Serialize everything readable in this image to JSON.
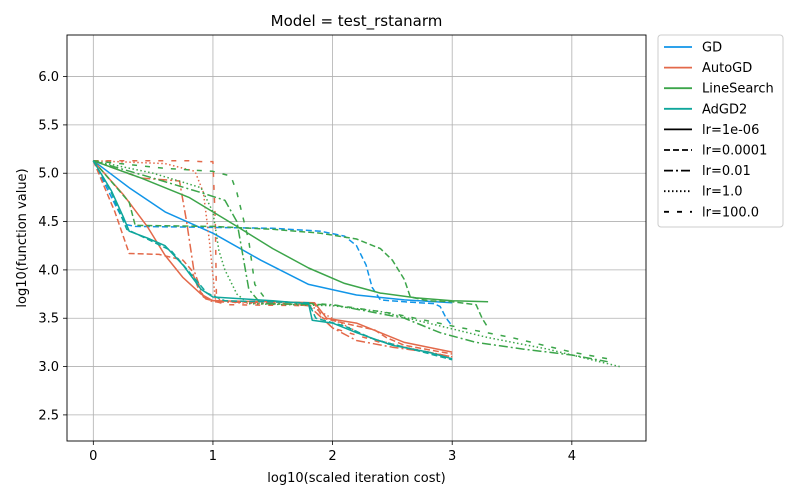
{
  "chart_data": {
    "type": "line",
    "title": "Model = test_rstanarm",
    "xlabel": "log10(scaled iteration cost)",
    "ylabel": "log10(function value)",
    "xlim": [
      -0.22,
      4.62
    ],
    "ylim": [
      2.23,
      6.43
    ],
    "xticks": [
      0,
      1,
      2,
      3,
      4
    ],
    "xtick_labels": [
      "0",
      "1",
      "2",
      "3",
      "4"
    ],
    "yticks": [
      2.5,
      3.0,
      3.5,
      4.0,
      4.5,
      5.0,
      5.5,
      6.0
    ],
    "ytick_labels": [
      "2.5",
      "3.0",
      "3.5",
      "4.0",
      "4.5",
      "5.0",
      "5.5",
      "6.0"
    ],
    "grid": true,
    "legend_position": "outside-right",
    "legend": [
      {
        "label": "GD",
        "kind": "color",
        "color": "#1195e8"
      },
      {
        "label": "AutoGD",
        "kind": "color",
        "color": "#e3694a"
      },
      {
        "label": "LineSearch",
        "kind": "color",
        "color": "#3ca54a"
      },
      {
        "label": "AdGD2",
        "kind": "color",
        "color": "#0fa69c"
      },
      {
        "label": "lr=1e-06",
        "kind": "style",
        "dash": "solid"
      },
      {
        "label": "lr=0.0001",
        "kind": "style",
        "dash": "dashed"
      },
      {
        "label": "lr=0.01",
        "kind": "style",
        "dash": "dashdot"
      },
      {
        "label": "lr=1.0",
        "kind": "style",
        "dash": "dotted"
      },
      {
        "label": "lr=100.0",
        "kind": "style",
        "dash": "loosedash"
      }
    ],
    "series": [
      {
        "name": "GD lr=1e-06",
        "method": "GD",
        "color": "#1195e8",
        "dash": "solid",
        "points": [
          [
            0,
            5.13
          ],
          [
            0.3,
            4.85
          ],
          [
            0.6,
            4.6
          ],
          [
            1.0,
            4.38
          ],
          [
            1.4,
            4.1
          ],
          [
            1.8,
            3.85
          ],
          [
            2.2,
            3.74
          ],
          [
            2.6,
            3.69
          ],
          [
            3.0,
            3.66
          ]
        ]
      },
      {
        "name": "GD lr=0.0001",
        "method": "GD",
        "color": "#1195e8",
        "dash": "dashed",
        "points": [
          [
            0,
            5.13
          ],
          [
            0.18,
            4.68
          ],
          [
            0.27,
            4.47
          ],
          [
            0.35,
            4.45
          ],
          [
            1.0,
            4.44
          ],
          [
            1.5,
            4.43
          ],
          [
            1.9,
            4.4
          ],
          [
            2.1,
            4.35
          ],
          [
            2.2,
            4.25
          ],
          [
            2.28,
            4.05
          ],
          [
            2.33,
            3.82
          ],
          [
            2.4,
            3.69
          ],
          [
            2.6,
            3.67
          ],
          [
            2.85,
            3.65
          ],
          [
            2.9,
            3.62
          ],
          [
            2.95,
            3.5
          ],
          [
            3.0,
            3.42
          ]
        ]
      },
      {
        "name": "AutoGD lr=1e-06",
        "method": "AutoGD",
        "color": "#e3694a",
        "dash": "solid",
        "points": [
          [
            0,
            5.13
          ],
          [
            0.25,
            4.78
          ],
          [
            0.45,
            4.45
          ],
          [
            0.6,
            4.15
          ],
          [
            0.75,
            3.92
          ],
          [
            0.9,
            3.75
          ],
          [
            1.0,
            3.68
          ],
          [
            1.5,
            3.67
          ],
          [
            1.85,
            3.66
          ],
          [
            1.95,
            3.5
          ],
          [
            2.2,
            3.45
          ],
          [
            2.4,
            3.35
          ],
          [
            2.6,
            3.25
          ],
          [
            3.0,
            3.15
          ]
        ]
      },
      {
        "name": "AutoGD lr=0.0001",
        "method": "AutoGD",
        "color": "#e3694a",
        "dash": "dashed",
        "points": [
          [
            0,
            5.13
          ],
          [
            0.18,
            4.6
          ],
          [
            0.3,
            4.17
          ],
          [
            0.55,
            4.16
          ],
          [
            0.75,
            4.1
          ],
          [
            0.82,
            4.0
          ],
          [
            0.88,
            3.8
          ],
          [
            0.94,
            3.7
          ],
          [
            1.0,
            3.68
          ],
          [
            1.5,
            3.67
          ],
          [
            1.85,
            3.65
          ],
          [
            1.92,
            3.5
          ],
          [
            2.2,
            3.42
          ],
          [
            2.35,
            3.38
          ],
          [
            2.45,
            3.3
          ],
          [
            2.6,
            3.22
          ],
          [
            3.0,
            3.13
          ]
        ]
      },
      {
        "name": "AutoGD lr=0.01",
        "method": "AutoGD",
        "color": "#e3694a",
        "dash": "dashdot",
        "points": [
          [
            0,
            5.13
          ],
          [
            0.4,
            4.95
          ],
          [
            0.62,
            4.93
          ],
          [
            0.72,
            4.92
          ],
          [
            0.78,
            4.5
          ],
          [
            0.84,
            4.0
          ],
          [
            0.92,
            3.72
          ],
          [
            1.0,
            3.67
          ],
          [
            1.5,
            3.66
          ],
          [
            1.8,
            3.63
          ],
          [
            2.0,
            3.4
          ],
          [
            2.2,
            3.27
          ],
          [
            2.5,
            3.2
          ],
          [
            2.8,
            3.15
          ],
          [
            3.0,
            3.1
          ]
        ]
      },
      {
        "name": "AutoGD lr=1.0",
        "method": "AutoGD",
        "color": "#e3694a",
        "dash": "dotted",
        "points": [
          [
            0,
            5.13
          ],
          [
            0.6,
            5.1
          ],
          [
            0.85,
            5.02
          ],
          [
            0.92,
            4.8
          ],
          [
            0.97,
            4.3
          ],
          [
            1.02,
            3.7
          ],
          [
            1.2,
            3.66
          ],
          [
            1.8,
            3.64
          ],
          [
            2.05,
            3.46
          ],
          [
            2.3,
            3.3
          ],
          [
            2.6,
            3.2
          ],
          [
            3.0,
            3.1
          ]
        ]
      },
      {
        "name": "AutoGD lr=100.0",
        "method": "AutoGD",
        "color": "#e3694a",
        "dash": "loosedash",
        "points": [
          [
            0,
            5.13
          ],
          [
            0.8,
            5.13
          ],
          [
            0.9,
            5.12
          ],
          [
            1.0,
            5.12
          ],
          [
            1.02,
            4.5
          ],
          [
            1.03,
            3.67
          ],
          [
            1.12,
            3.64
          ],
          [
            1.8,
            3.63
          ],
          [
            2.0,
            3.4
          ],
          [
            2.4,
            3.25
          ],
          [
            3.0,
            3.1
          ]
        ]
      },
      {
        "name": "LineSearch lr=1e-06",
        "method": "LineSearch",
        "color": "#3ca54a",
        "dash": "solid",
        "points": [
          [
            0,
            5.13
          ],
          [
            0.4,
            4.95
          ],
          [
            0.8,
            4.75
          ],
          [
            1.2,
            4.45
          ],
          [
            1.5,
            4.22
          ],
          [
            1.8,
            4.02
          ],
          [
            2.1,
            3.86
          ],
          [
            2.4,
            3.76
          ],
          [
            2.7,
            3.71
          ],
          [
            3.0,
            3.68
          ],
          [
            3.3,
            3.67
          ]
        ]
      },
      {
        "name": "LineSearch lr=0.0001",
        "method": "LineSearch",
        "color": "#3ca54a",
        "dash": "dashed",
        "points": [
          [
            0,
            5.13
          ],
          [
            0.3,
            4.7
          ],
          [
            0.35,
            4.46
          ],
          [
            1.0,
            4.45
          ],
          [
            1.5,
            4.42
          ],
          [
            1.9,
            4.38
          ],
          [
            2.2,
            4.32
          ],
          [
            2.4,
            4.22
          ],
          [
            2.5,
            4.1
          ],
          [
            2.6,
            3.9
          ],
          [
            2.65,
            3.72
          ],
          [
            2.8,
            3.68
          ],
          [
            3.0,
            3.67
          ],
          [
            3.2,
            3.64
          ],
          [
            3.25,
            3.5
          ],
          [
            3.3,
            3.4
          ]
        ]
      },
      {
        "name": "LineSearch lr=0.01",
        "method": "LineSearch",
        "color": "#3ca54a",
        "dash": "dashdot",
        "points": [
          [
            0,
            5.13
          ],
          [
            0.5,
            4.95
          ],
          [
            0.9,
            4.8
          ],
          [
            1.1,
            4.72
          ],
          [
            1.2,
            4.5
          ],
          [
            1.3,
            3.8
          ],
          [
            1.4,
            3.65
          ],
          [
            2.0,
            3.64
          ],
          [
            2.6,
            3.5
          ],
          [
            2.9,
            3.35
          ],
          [
            3.2,
            3.25
          ],
          [
            3.6,
            3.18
          ],
          [
            4.0,
            3.12
          ],
          [
            4.3,
            3.05
          ]
        ]
      },
      {
        "name": "LineSearch lr=1.0",
        "method": "LineSearch",
        "color": "#3ca54a",
        "dash": "dotted",
        "points": [
          [
            0,
            5.13
          ],
          [
            0.5,
            5.0
          ],
          [
            0.9,
            4.85
          ],
          [
            1.0,
            4.6
          ],
          [
            1.05,
            4.2
          ],
          [
            1.1,
            4.0
          ],
          [
            1.2,
            3.75
          ],
          [
            1.3,
            3.65
          ],
          [
            2.0,
            3.63
          ],
          [
            2.4,
            3.57
          ],
          [
            2.8,
            3.45
          ],
          [
            3.3,
            3.3
          ],
          [
            3.8,
            3.18
          ],
          [
            4.4,
            3.0
          ]
        ]
      },
      {
        "name": "LineSearch lr=100.0",
        "method": "LineSearch",
        "color": "#3ca54a",
        "dash": "loosedash",
        "points": [
          [
            0,
            5.13
          ],
          [
            0.6,
            5.05
          ],
          [
            1.0,
            5.02
          ],
          [
            1.15,
            4.97
          ],
          [
            1.2,
            4.8
          ],
          [
            1.3,
            4.3
          ],
          [
            1.35,
            3.85
          ],
          [
            1.45,
            3.68
          ],
          [
            2.0,
            3.64
          ],
          [
            2.5,
            3.55
          ],
          [
            3.0,
            3.42
          ],
          [
            3.5,
            3.3
          ],
          [
            4.0,
            3.15
          ],
          [
            4.3,
            3.08
          ]
        ]
      },
      {
        "name": "AdGD2 lr=1e-06",
        "method": "AdGD2",
        "color": "#0fa69c",
        "dash": "solid",
        "points": [
          [
            0,
            5.13
          ],
          [
            0.15,
            4.82
          ],
          [
            0.25,
            4.55
          ],
          [
            0.3,
            4.4
          ],
          [
            0.45,
            4.33
          ],
          [
            0.6,
            4.25
          ],
          [
            0.75,
            4.05
          ],
          [
            0.9,
            3.8
          ],
          [
            1.0,
            3.72
          ],
          [
            1.5,
            3.68
          ],
          [
            1.8,
            3.65
          ],
          [
            1.83,
            3.48
          ],
          [
            2.0,
            3.45
          ],
          [
            2.2,
            3.35
          ],
          [
            2.5,
            3.22
          ],
          [
            2.8,
            3.15
          ],
          [
            3.0,
            3.08
          ]
        ]
      },
      {
        "name": "AdGD2 lr=0.0001",
        "method": "AdGD2",
        "color": "#0fa69c",
        "dash": "dashed",
        "points": [
          [
            0,
            5.13
          ],
          [
            0.15,
            4.8
          ],
          [
            0.28,
            4.42
          ],
          [
            0.45,
            4.32
          ],
          [
            0.65,
            4.2
          ],
          [
            0.82,
            3.95
          ],
          [
            0.95,
            3.76
          ],
          [
            1.1,
            3.68
          ],
          [
            1.8,
            3.66
          ],
          [
            1.86,
            3.5
          ],
          [
            2.1,
            3.42
          ],
          [
            2.35,
            3.28
          ],
          [
            2.6,
            3.2
          ],
          [
            3.0,
            3.07
          ]
        ]
      }
    ]
  }
}
